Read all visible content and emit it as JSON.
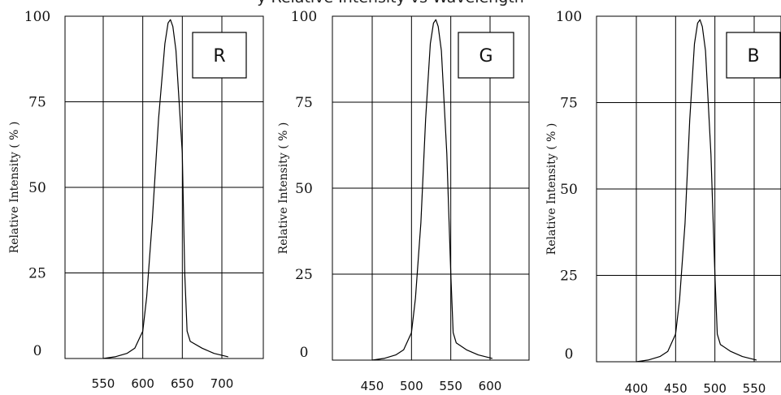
{
  "page": {
    "title": "y Relative Intensity vs Wavelength"
  },
  "chart_data": [
    {
      "type": "line",
      "badge": "R",
      "ylabel": "Relative Intensity ( % )",
      "ylim": [
        0,
        100
      ],
      "yticks": [
        "100",
        "75",
        "50",
        "25",
        "0"
      ],
      "xticks": [
        "550",
        "600",
        "650",
        "700"
      ],
      "grid": true,
      "series": [
        {
          "x": [
            550,
            565,
            580,
            590,
            600,
            605,
            612,
            620,
            628,
            632,
            635,
            638,
            642,
            650,
            653,
            656,
            660,
            675,
            690,
            708
          ],
          "y": [
            0,
            0.5,
            1.5,
            3,
            8,
            18,
            40,
            70,
            92,
            98,
            99,
            97,
            90,
            60,
            25,
            8,
            5,
            3,
            1.5,
            0.5
          ]
        }
      ]
    },
    {
      "type": "line",
      "badge": "G",
      "ylabel": "Relative Intensity ( % )",
      "ylim": [
        0,
        100
      ],
      "yticks": [
        "100",
        "75",
        "50",
        "25",
        "0"
      ],
      "xticks": [
        "450",
        "500",
        "550",
        "600"
      ],
      "grid": true,
      "series": [
        {
          "x": [
            450,
            465,
            480,
            490,
            500,
            505,
            512,
            518,
            524,
            528,
            531,
            534,
            538,
            545,
            550,
            553,
            557,
            570,
            585,
            603
          ],
          "y": [
            0,
            0.5,
            1.5,
            3,
            8,
            18,
            40,
            70,
            92,
            98,
            99,
            97,
            90,
            60,
            25,
            8,
            5,
            3,
            1.5,
            0.5
          ]
        }
      ]
    },
    {
      "type": "line",
      "badge": "B",
      "ylabel": "Relative Intensity ( % )",
      "ylim": [
        0,
        100
      ],
      "yticks": [
        "100",
        "75",
        "50",
        "25",
        "0"
      ],
      "xticks": [
        "400",
        "450",
        "500",
        "550"
      ],
      "grid": true,
      "series": [
        {
          "x": [
            400,
            415,
            430,
            440,
            450,
            455,
            462,
            468,
            474,
            478,
            481,
            484,
            488,
            495,
            500,
            503,
            507,
            520,
            535,
            553
          ],
          "y": [
            0,
            0.5,
            1.5,
            3,
            8,
            18,
            40,
            70,
            92,
            98,
            99,
            97,
            90,
            60,
            25,
            8,
            5,
            3,
            1.5,
            0.5
          ]
        }
      ]
    }
  ]
}
